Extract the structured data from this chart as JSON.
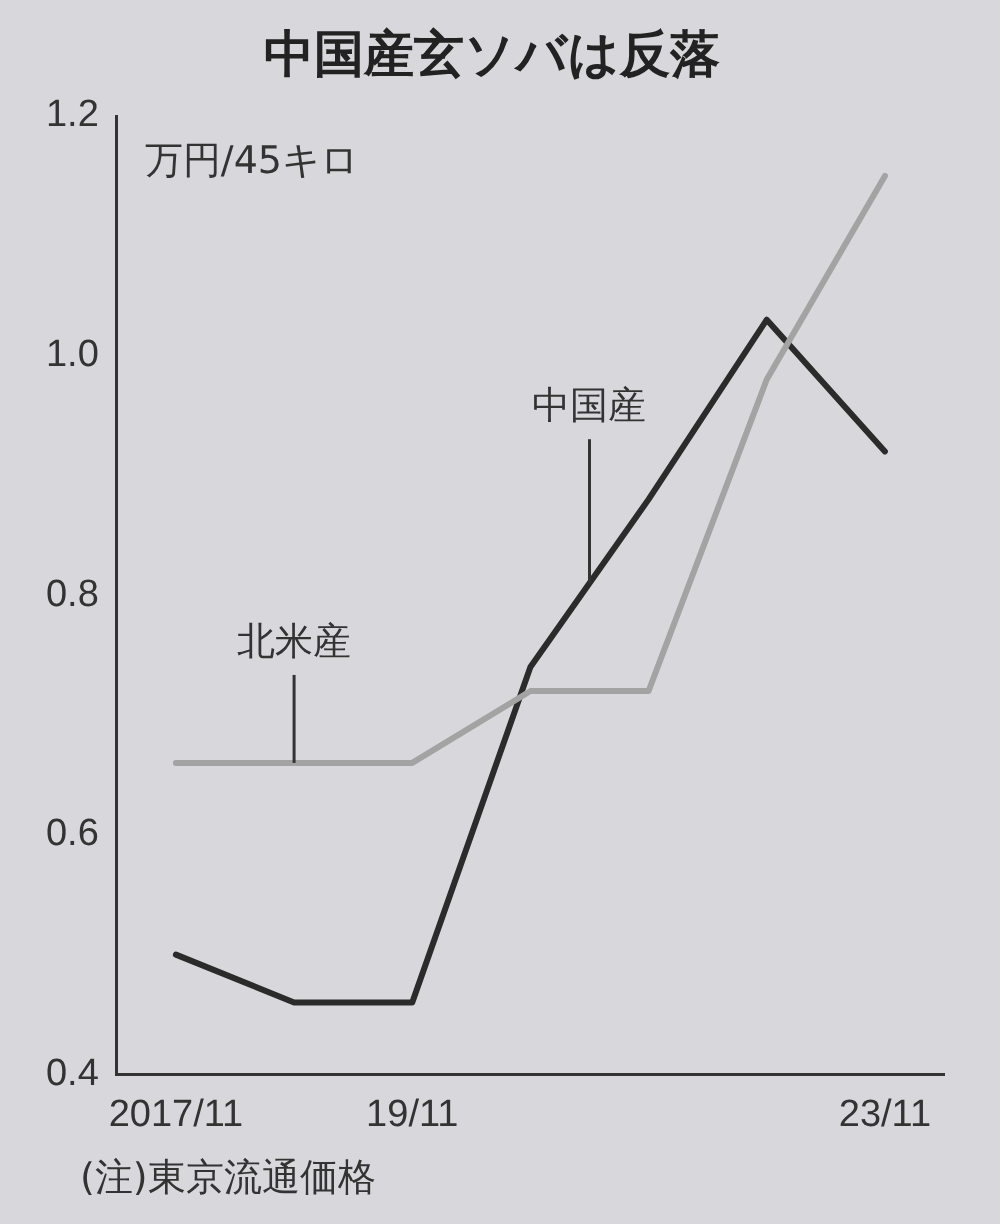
{
  "chart_data": {
    "type": "line",
    "title": "中国産玄ソバは反落",
    "ylabel": "万円/45キロ",
    "categories": [
      "2017/11",
      null,
      "19/11",
      null,
      null,
      null,
      "23/11"
    ],
    "series": [
      {
        "name": "中国産",
        "color": "#2b2b2b",
        "values": [
          0.5,
          0.46,
          0.46,
          0.74,
          0.88,
          1.03,
          0.92
        ]
      },
      {
        "name": "北米産",
        "color": "#a3a3a3",
        "values": [
          0.66,
          0.66,
          0.66,
          0.72,
          0.72,
          0.98,
          1.15
        ]
      }
    ],
    "ylim": [
      0.4,
      1.2
    ],
    "yticks": [
      {
        "value": 0.4,
        "label": "0.4"
      },
      {
        "value": 0.6,
        "label": "0.6"
      },
      {
        "value": 0.8,
        "label": "0.8"
      },
      {
        "value": 1.0,
        "label": "1.0"
      },
      {
        "value": 1.2,
        "label": "1.2"
      }
    ],
    "grid": false,
    "legend": false,
    "marker": "none",
    "line_style": "solid",
    "annotations": [
      "(注)東京流通価格"
    ]
  }
}
